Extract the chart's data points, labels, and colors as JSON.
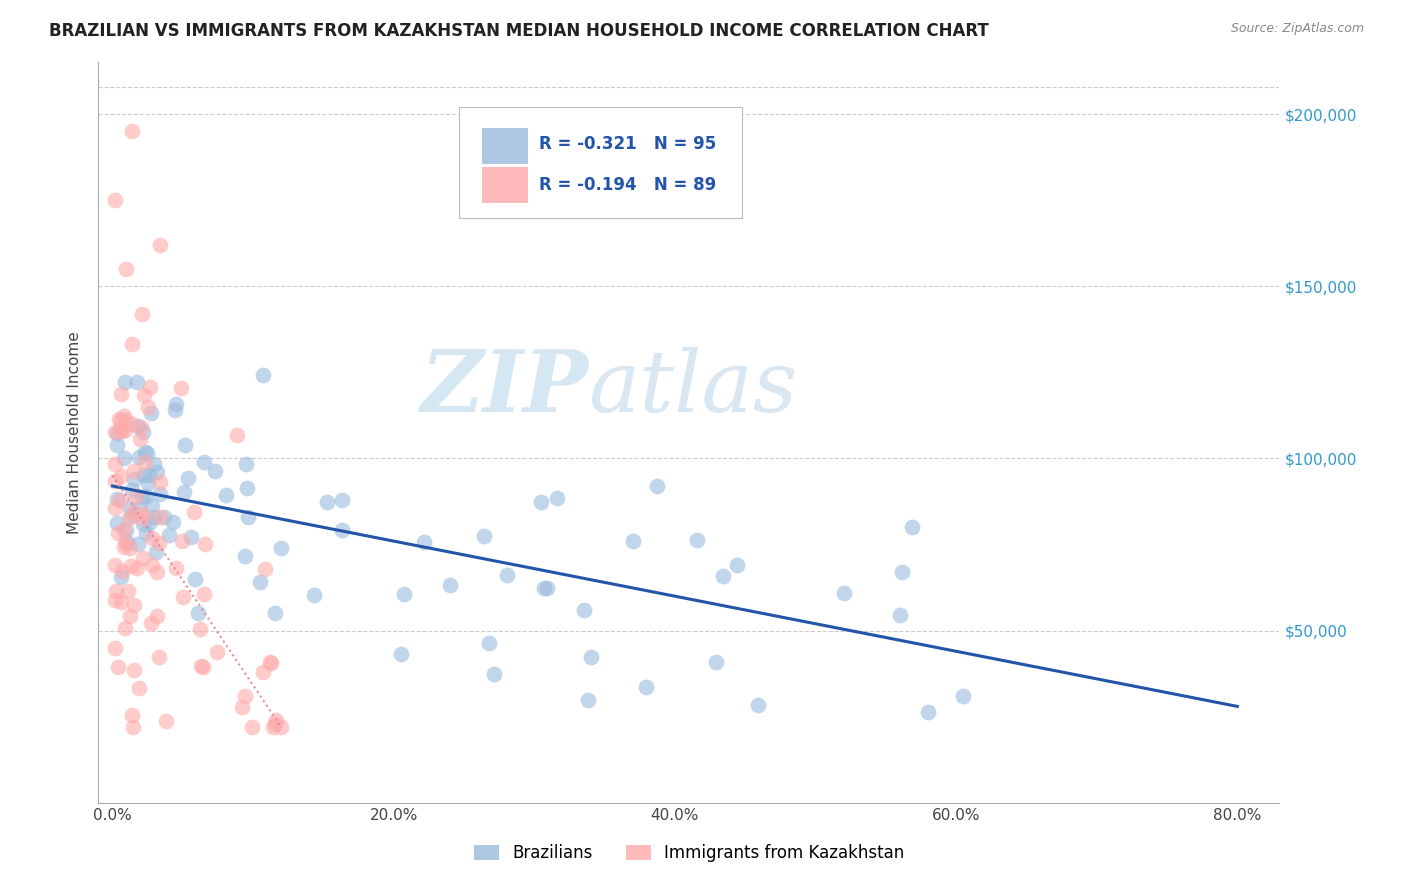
{
  "title": "BRAZILIAN VS IMMIGRANTS FROM KAZAKHSTAN MEDIAN HOUSEHOLD INCOME CORRELATION CHART",
  "source": "Source: ZipAtlas.com",
  "ylabel": "Median Household Income",
  "ytick_vals": [
    50000,
    100000,
    150000,
    200000
  ],
  "ytick_labels": [
    "$50,000",
    "$100,000",
    "$150,000",
    "$200,000"
  ],
  "xtick_vals": [
    0,
    20,
    40,
    60,
    80
  ],
  "xtick_labels": [
    "0.0%",
    "20.0%",
    "40.0%",
    "60.0%",
    "80.0%"
  ],
  "ylim": [
    0,
    215000
  ],
  "xlim": [
    -1,
    83
  ],
  "watermark_zip": "ZIP",
  "watermark_atlas": "atlas",
  "legend_r_blue": "R = -0.321",
  "legend_n_blue": "N = 95",
  "legend_r_pink": "R = -0.194",
  "legend_n_pink": "N = 89",
  "legend_label_blue": "Brazilians",
  "legend_label_pink": "Immigrants from Kazakhstan",
  "blue_color": "#99BBDD",
  "pink_color": "#FFAAAA",
  "blue_line_color": "#2255AA",
  "pink_line_color": "#EE8899",
  "title_color": "#222222",
  "blue_reg_x0": 0,
  "blue_reg_y0": 92000,
  "blue_reg_x1": 80,
  "blue_reg_y1": 28000,
  "pink_reg_x0": 0,
  "pink_reg_y0": 95000,
  "pink_reg_x1": 12,
  "pink_reg_y1": 22000
}
